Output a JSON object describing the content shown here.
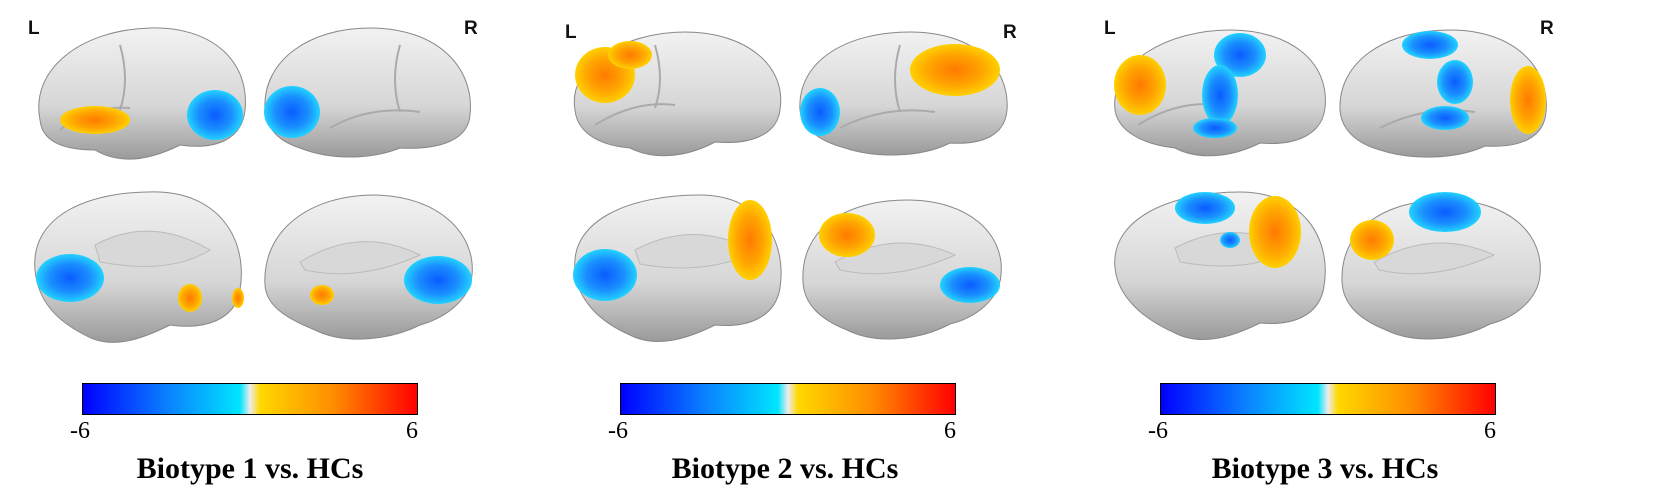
{
  "hemisphere_labels": {
    "left": "L",
    "right": "R"
  },
  "colorbar": {
    "min_label": "-6",
    "max_label": "6",
    "colors": [
      "#0000ff",
      "#0a7fff",
      "#00e5ff",
      "#e6e6e6",
      "#ffd800",
      "#ff8c00",
      "#ff0000"
    ]
  },
  "panels": [
    {
      "title": "Biotype 1 vs. HCs"
    },
    {
      "title": "Biotype 2 vs. HCs"
    },
    {
      "title": "Biotype 3 vs. HCs"
    }
  ]
}
